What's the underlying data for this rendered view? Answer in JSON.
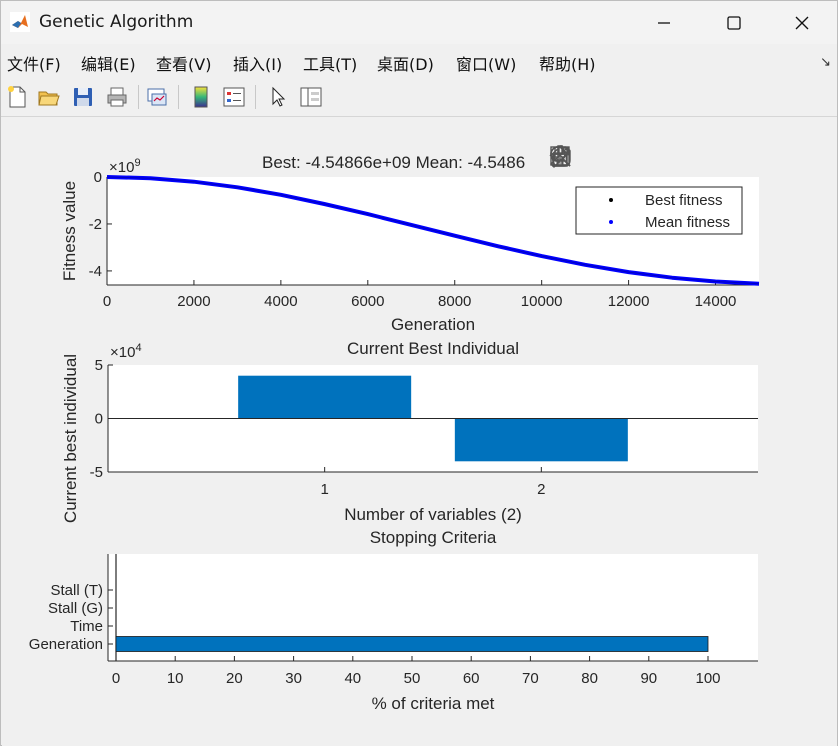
{
  "window": {
    "title": "Genetic Algorithm",
    "minimize_glyph": "─",
    "maximize_glyph": "☐",
    "close_glyph": "✕"
  },
  "menu": {
    "items": [
      "文件(F)",
      "编辑(E)",
      "查看(V)",
      "插入(I)",
      "工具(T)",
      "桌面(D)",
      "窗口(W)",
      "帮助(H)"
    ],
    "more_glyph": "↘"
  },
  "toolbar": {
    "icons": [
      "new-figure-icon",
      "open-file-icon",
      "save-icon",
      "print-icon",
      "link-plot-icon",
      "colorbar-icon",
      "legend-icon",
      "pointer-icon",
      "property-inspector-icon"
    ]
  },
  "axes_toolbar": {
    "icons": [
      "brush-export-icon",
      "data-brush-icon",
      "data-tips-icon",
      "pan-hand-icon",
      "zoom-in-icon",
      "zoom-out-icon",
      "home-restore-icon"
    ]
  },
  "colors": {
    "mean_line": "#0000ff",
    "best_marker": "#000000",
    "bar": "#0072bd"
  },
  "chart_data": [
    {
      "type": "line",
      "title": "Best: -4.54866e+09 Mean: -4.5486",
      "xlabel": "Generation",
      "ylabel": "Fitness value",
      "y_exponent": "×10",
      "y_exponent_power": "9",
      "xlim": [
        0,
        15000
      ],
      "ylim": [
        -4.6,
        0
      ],
      "xticks": [
        "0",
        "2000",
        "4000",
        "6000",
        "8000",
        "10000",
        "12000",
        "14000"
      ],
      "xtick_values": [
        0,
        2000,
        4000,
        6000,
        8000,
        10000,
        12000,
        14000
      ],
      "yticks": [
        "0",
        "-2",
        "-4"
      ],
      "ytick_values": [
        0,
        -2,
        -4
      ],
      "legend_placement": "top-right",
      "series": [
        {
          "name": "Best fitness",
          "marker": "dot",
          "color": "#000000",
          "x": [
            0,
            1000,
            2000,
            3000,
            4000,
            5000,
            6000,
            7000,
            8000,
            9000,
            10000,
            11000,
            12000,
            13000,
            14000,
            15000
          ],
          "y": [
            0,
            -0.05,
            -0.2,
            -0.44,
            -0.76,
            -1.15,
            -1.58,
            -2.04,
            -2.5,
            -2.95,
            -3.37,
            -3.74,
            -4.05,
            -4.29,
            -4.45,
            -4.55
          ]
        },
        {
          "name": "Mean fitness",
          "marker": "dot",
          "color": "#0000ff",
          "x": [
            0,
            1000,
            2000,
            3000,
            4000,
            5000,
            6000,
            7000,
            8000,
            9000,
            10000,
            11000,
            12000,
            13000,
            14000,
            15000
          ],
          "y": [
            0,
            -0.05,
            -0.2,
            -0.44,
            -0.76,
            -1.15,
            -1.58,
            -2.04,
            -2.5,
            -2.95,
            -3.37,
            -3.74,
            -4.05,
            -4.29,
            -4.45,
            -4.55
          ]
        }
      ]
    },
    {
      "type": "bar",
      "title": "Current Best Individual",
      "xlabel": "Number of variables (2)",
      "ylabel": "Current best individual",
      "y_exponent": "×10",
      "y_exponent_power": "4",
      "categories": [
        "1",
        "2"
      ],
      "values": [
        4,
        -4
      ],
      "ylim": [
        -5,
        5
      ],
      "yticks": [
        "5",
        "0",
        "-5"
      ],
      "ytick_values": [
        5,
        0,
        -5
      ]
    },
    {
      "type": "bar",
      "orientation": "horizontal",
      "title": "Stopping Criteria",
      "xlabel": "% of criteria met",
      "categories": [
        "Generation",
        "Time",
        "Stall (G)",
        "Stall (T)"
      ],
      "values": [
        100,
        0,
        0,
        0
      ],
      "xlim": [
        0,
        108
      ],
      "xticks": [
        "0",
        "10",
        "20",
        "30",
        "40",
        "50",
        "60",
        "70",
        "80",
        "90",
        "100"
      ],
      "xtick_values": [
        0,
        10,
        20,
        30,
        40,
        50,
        60,
        70,
        80,
        90,
        100
      ]
    }
  ]
}
